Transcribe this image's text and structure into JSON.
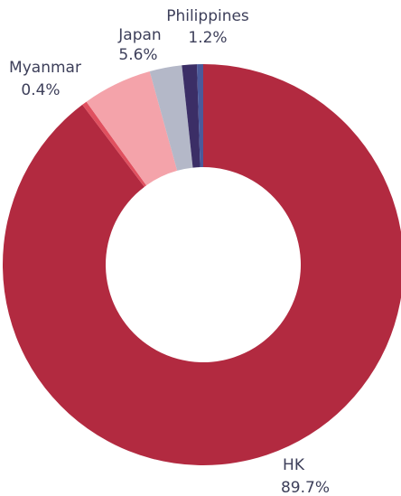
{
  "chart_data": {
    "type": "pie",
    "categories": [
      "HK",
      "Myanmar",
      "Japan",
      null,
      "Philippines",
      null
    ],
    "values": [
      89.7,
      0.4,
      5.6,
      2.6,
      1.2,
      0.5
    ],
    "value_labels": [
      "89.7%",
      "0.4%",
      "5.6%",
      null,
      "1.2%",
      null
    ],
    "colors": [
      "#b22a40",
      "#e0505f",
      "#f4a3aa",
      "#b4b8c8",
      "#3b2e66",
      "#4a5a9a"
    ]
  }
}
